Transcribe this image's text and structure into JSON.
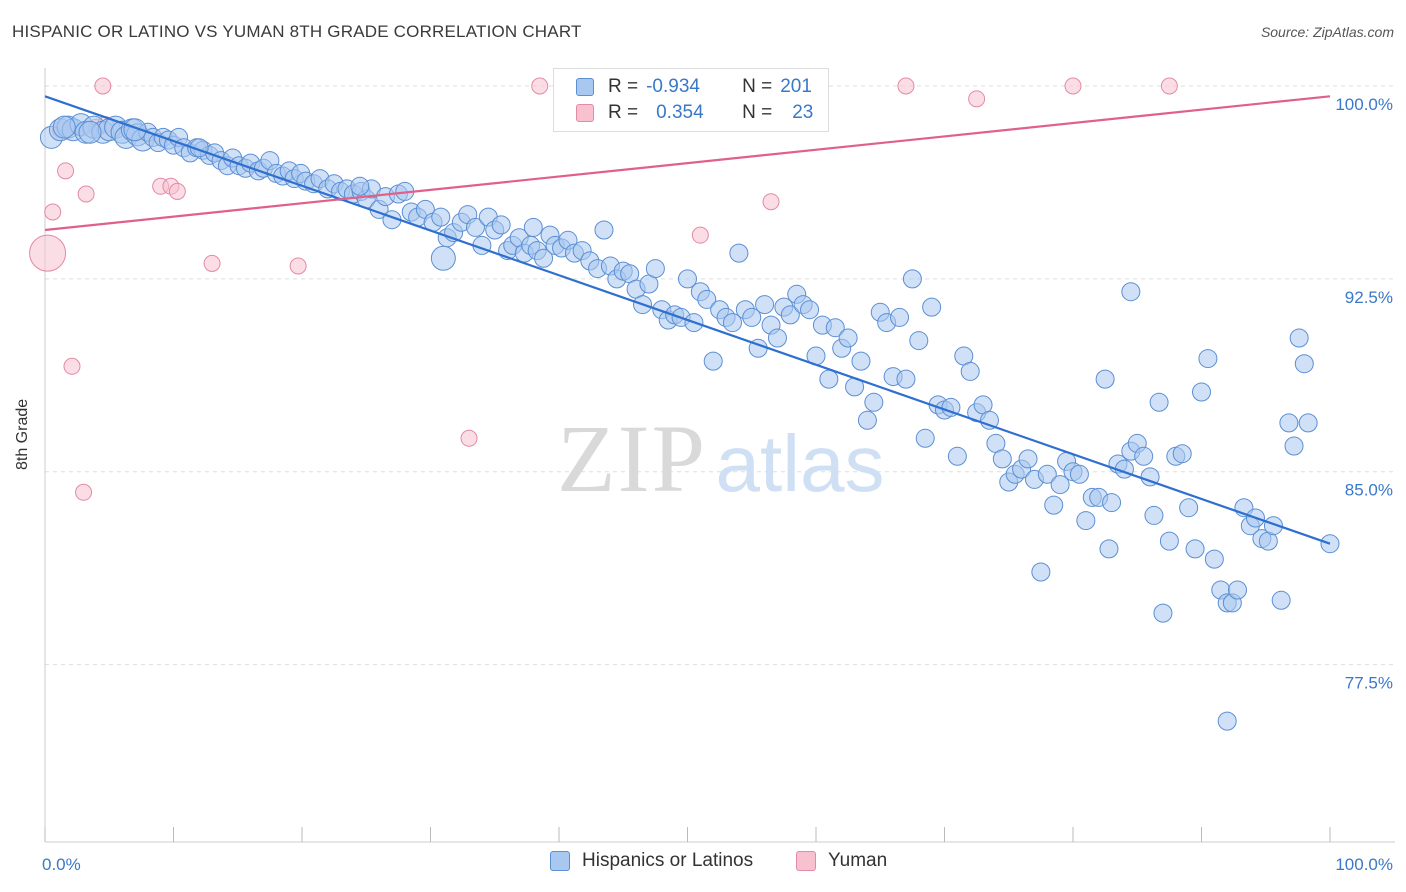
{
  "header": {
    "title": "HISPANIC OR LATINO VS YUMAN 8TH GRADE CORRELATION CHART",
    "source": "Source: ZipAtlas.com"
  },
  "watermark": {
    "zip": "ZIP",
    "atlas": "atlas"
  },
  "legend_top": {
    "rows": [
      {
        "r_label": "R =",
        "r_value": "-0.934",
        "n_label": "N =",
        "n_value": "201"
      },
      {
        "r_label": "R =",
        "r_value": "0.354",
        "n_label": "N =",
        "n_value": "23"
      }
    ]
  },
  "colors": {
    "blue_fill": "#a9c8f0",
    "blue_stroke": "#5b8fd4",
    "blue_line": "#2e6fd0",
    "pink_fill": "#f7c1d0",
    "pink_stroke": "#e38aa6",
    "pink_line": "#e0608a",
    "grid": "#dddddd",
    "tick_label": "#3a78c9"
  },
  "chart_data": {
    "type": "scatter",
    "title": "HISPANIC OR LATINO VS YUMAN 8TH GRADE CORRELATION CHART",
    "xlabel": "",
    "ylabel": "8th Grade",
    "xlim": [
      0,
      100
    ],
    "ylim": [
      70.6,
      100.7
    ],
    "x_tick_labels": [
      "0.0%",
      "100.0%"
    ],
    "y_ticks": [
      77.5,
      85.0,
      92.5,
      100.0
    ],
    "y_tick_labels": [
      "77.5%",
      "85.0%",
      "92.5%",
      "100.0%"
    ],
    "grid": "horizontal dashed",
    "legend": "bottom",
    "series": [
      {
        "name": "Hispanics or Latinos",
        "r": -0.934,
        "n": 201,
        "trend": {
          "x": [
            0,
            100
          ],
          "y": [
            99.6,
            82.2
          ]
        },
        "points": [
          [
            0.5,
            98.0
          ],
          [
            1.2,
            98.3
          ],
          [
            1.8,
            98.4
          ],
          [
            2.2,
            98.3
          ],
          [
            2.8,
            98.5
          ],
          [
            3.2,
            98.2
          ],
          [
            3.8,
            98.4
          ],
          [
            4.5,
            98.2
          ],
          [
            5.0,
            98.3
          ],
          [
            5.5,
            98.4
          ],
          [
            6.0,
            98.2
          ],
          [
            6.3,
            98.0
          ],
          [
            6.8,
            98.3
          ],
          [
            7.2,
            98.1
          ],
          [
            7.6,
            97.9
          ],
          [
            8.0,
            98.2
          ],
          [
            8.4,
            98.0
          ],
          [
            8.8,
            97.8
          ],
          [
            9.2,
            98.0
          ],
          [
            9.6,
            97.9
          ],
          [
            10.0,
            97.7
          ],
          [
            10.4,
            98.0
          ],
          [
            10.8,
            97.6
          ],
          [
            11.3,
            97.4
          ],
          [
            11.8,
            97.6
          ],
          [
            12.3,
            97.5
          ],
          [
            12.8,
            97.3
          ],
          [
            13.2,
            97.4
          ],
          [
            13.7,
            97.1
          ],
          [
            14.2,
            96.9
          ],
          [
            14.6,
            97.2
          ],
          [
            15.1,
            96.9
          ],
          [
            15.6,
            96.8
          ],
          [
            16.0,
            97.0
          ],
          [
            16.6,
            96.7
          ],
          [
            17.0,
            96.8
          ],
          [
            17.5,
            97.1
          ],
          [
            18.0,
            96.6
          ],
          [
            18.5,
            96.5
          ],
          [
            19.0,
            96.7
          ],
          [
            19.4,
            96.4
          ],
          [
            19.9,
            96.6
          ],
          [
            20.3,
            96.3
          ],
          [
            20.9,
            96.2
          ],
          [
            21.4,
            96.4
          ],
          [
            22.0,
            96.0
          ],
          [
            22.5,
            96.2
          ],
          [
            23.0,
            95.9
          ],
          [
            23.5,
            96.0
          ],
          [
            24.0,
            95.8
          ],
          [
            24.6,
            95.9
          ],
          [
            25.0,
            95.6
          ],
          [
            25.4,
            96.0
          ],
          [
            26.0,
            95.2
          ],
          [
            26.5,
            95.7
          ],
          [
            27.0,
            94.8
          ],
          [
            27.5,
            95.8
          ],
          [
            28.0,
            95.9
          ],
          [
            28.5,
            95.1
          ],
          [
            29.0,
            94.9
          ],
          [
            29.6,
            95.2
          ],
          [
            30.2,
            94.7
          ],
          [
            30.8,
            94.9
          ],
          [
            31.3,
            94.1
          ],
          [
            31.8,
            94.3
          ],
          [
            32.4,
            94.7
          ],
          [
            32.9,
            95.0
          ],
          [
            33.5,
            94.5
          ],
          [
            34.0,
            93.8
          ],
          [
            34.5,
            94.9
          ],
          [
            35.0,
            94.4
          ],
          [
            35.5,
            94.6
          ],
          [
            36.0,
            93.6
          ],
          [
            36.4,
            93.8
          ],
          [
            36.9,
            94.1
          ],
          [
            37.3,
            93.5
          ],
          [
            37.8,
            93.8
          ],
          [
            38.3,
            93.6
          ],
          [
            38.8,
            93.3
          ],
          [
            39.3,
            94.2
          ],
          [
            39.7,
            93.8
          ],
          [
            40.2,
            93.7
          ],
          [
            40.7,
            94.0
          ],
          [
            41.2,
            93.5
          ],
          [
            41.8,
            93.6
          ],
          [
            42.4,
            93.2
          ],
          [
            43.0,
            92.9
          ],
          [
            43.5,
            94.4
          ],
          [
            44.0,
            93.0
          ],
          [
            44.5,
            92.5
          ],
          [
            45.0,
            92.8
          ],
          [
            45.5,
            92.7
          ],
          [
            46.0,
            92.1
          ],
          [
            46.5,
            91.5
          ],
          [
            47.0,
            92.3
          ],
          [
            47.5,
            92.9
          ],
          [
            48.0,
            91.3
          ],
          [
            48.5,
            90.9
          ],
          [
            49.0,
            91.1
          ],
          [
            49.5,
            91.0
          ],
          [
            50.0,
            92.5
          ],
          [
            50.5,
            90.8
          ],
          [
            51.0,
            92.0
          ],
          [
            51.5,
            91.7
          ],
          [
            52.0,
            89.3
          ],
          [
            52.5,
            91.3
          ],
          [
            53.0,
            91.0
          ],
          [
            53.5,
            90.8
          ],
          [
            54.0,
            93.5
          ],
          [
            54.5,
            91.3
          ],
          [
            55.0,
            91.0
          ],
          [
            55.5,
            89.8
          ],
          [
            56.0,
            91.5
          ],
          [
            56.5,
            90.7
          ],
          [
            57.0,
            90.2
          ],
          [
            57.5,
            91.4
          ],
          [
            58.0,
            91.1
          ],
          [
            58.5,
            91.9
          ],
          [
            59.0,
            91.5
          ],
          [
            59.5,
            91.3
          ],
          [
            60.0,
            89.5
          ],
          [
            60.5,
            90.7
          ],
          [
            61.0,
            88.6
          ],
          [
            61.5,
            90.6
          ],
          [
            62.0,
            89.8
          ],
          [
            62.5,
            90.2
          ],
          [
            63.0,
            88.3
          ],
          [
            63.5,
            89.3
          ],
          [
            64.0,
            87.0
          ],
          [
            64.5,
            87.7
          ],
          [
            65.0,
            91.2
          ],
          [
            65.5,
            90.8
          ],
          [
            66.0,
            88.7
          ],
          [
            66.5,
            91.0
          ],
          [
            67.0,
            88.6
          ],
          [
            67.5,
            92.5
          ],
          [
            68.0,
            90.1
          ],
          [
            68.5,
            86.3
          ],
          [
            69.0,
            91.4
          ],
          [
            69.5,
            87.6
          ],
          [
            70.0,
            87.4
          ],
          [
            70.5,
            87.5
          ],
          [
            71.0,
            85.6
          ],
          [
            71.5,
            89.5
          ],
          [
            72.0,
            88.9
          ],
          [
            72.5,
            87.3
          ],
          [
            73.0,
            87.6
          ],
          [
            73.5,
            87.0
          ],
          [
            74.0,
            86.1
          ],
          [
            74.5,
            85.5
          ],
          [
            75.0,
            84.6
          ],
          [
            75.5,
            84.9
          ],
          [
            76.0,
            85.1
          ],
          [
            76.5,
            85.5
          ],
          [
            77.0,
            84.7
          ],
          [
            77.5,
            81.1
          ],
          [
            78.0,
            84.9
          ],
          [
            78.5,
            83.7
          ],
          [
            79.0,
            84.5
          ],
          [
            79.5,
            85.4
          ],
          [
            80.0,
            85.0
          ],
          [
            80.5,
            84.9
          ],
          [
            81.0,
            83.1
          ],
          [
            81.5,
            84.0
          ],
          [
            82.0,
            84.0
          ],
          [
            82.5,
            88.6
          ],
          [
            82.8,
            82.0
          ],
          [
            83.0,
            83.8
          ],
          [
            83.5,
            85.3
          ],
          [
            84.0,
            85.1
          ],
          [
            84.5,
            85.8
          ],
          [
            85.0,
            86.1
          ],
          [
            85.5,
            85.6
          ],
          [
            86.0,
            84.8
          ],
          [
            86.3,
            83.3
          ],
          [
            86.7,
            87.7
          ],
          [
            87.0,
            79.5
          ],
          [
            87.5,
            82.3
          ],
          [
            88.0,
            85.6
          ],
          [
            88.5,
            85.7
          ],
          [
            89.0,
            83.6
          ],
          [
            89.5,
            82.0
          ],
          [
            90.0,
            88.1
          ],
          [
            90.5,
            89.4
          ],
          [
            91.0,
            81.6
          ],
          [
            91.5,
            80.4
          ],
          [
            92.0,
            79.9
          ],
          [
            92.4,
            79.9
          ],
          [
            92.8,
            80.4
          ],
          [
            93.3,
            83.6
          ],
          [
            93.8,
            82.9
          ],
          [
            94.2,
            83.2
          ],
          [
            94.7,
            82.4
          ],
          [
            95.2,
            82.3
          ],
          [
            95.6,
            82.9
          ],
          [
            96.2,
            80.0
          ],
          [
            96.8,
            86.9
          ],
          [
            97.2,
            86.0
          ],
          [
            97.6,
            90.2
          ],
          [
            98.0,
            89.2
          ],
          [
            98.3,
            86.9
          ],
          [
            100.0,
            82.2
          ],
          [
            92.0,
            75.3
          ],
          [
            84.5,
            92.0
          ],
          [
            31.0,
            93.3
          ],
          [
            12.0,
            97.6
          ],
          [
            3.5,
            98.2
          ],
          [
            7.0,
            98.3
          ],
          [
            24.5,
            96.1
          ],
          [
            38.0,
            94.5
          ],
          [
            1.5,
            98.4
          ]
        ]
      },
      {
        "name": "Yuman",
        "r": 0.354,
        "n": 23,
        "trend": {
          "x": [
            0,
            100
          ],
          "y": [
            94.4,
            99.6
          ]
        },
        "points": [
          [
            0.2,
            93.5
          ],
          [
            0.6,
            95.1
          ],
          [
            1.6,
            96.7
          ],
          [
            2.1,
            89.1
          ],
          [
            3.0,
            84.2
          ],
          [
            3.2,
            95.8
          ],
          [
            4.0,
            98.4
          ],
          [
            4.5,
            100.0
          ],
          [
            4.7,
            98.5
          ],
          [
            9.0,
            96.1
          ],
          [
            9.8,
            96.1
          ],
          [
            10.3,
            95.9
          ],
          [
            13.0,
            93.1
          ],
          [
            19.7,
            93.0
          ],
          [
            33.0,
            86.3
          ],
          [
            38.5,
            100.0
          ],
          [
            51.0,
            94.2
          ],
          [
            56.5,
            95.5
          ],
          [
            67.0,
            100.0
          ],
          [
            72.5,
            99.5
          ],
          [
            80.0,
            100.0
          ],
          [
            87.5,
            100.0
          ],
          [
            1.2,
            98.3
          ]
        ]
      }
    ]
  },
  "bottom_legend": {
    "items": [
      {
        "label": "Hispanics or Latinos"
      },
      {
        "label": "Yuman"
      }
    ]
  }
}
